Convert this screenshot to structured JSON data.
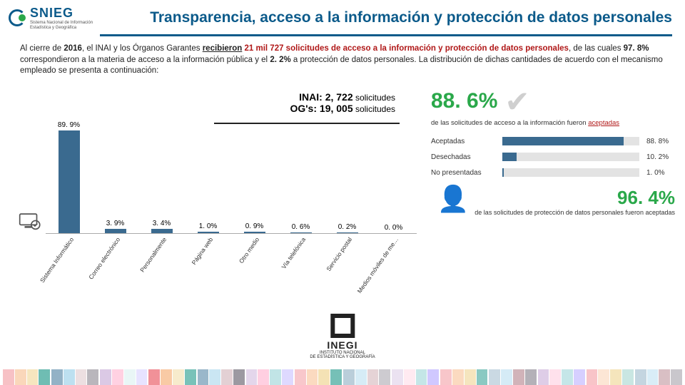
{
  "logo": {
    "text": "SNIEG",
    "sub1": "Sistema Nacional de Información",
    "sub2": "Estadística y Geográfica"
  },
  "title": "Transparencia, acceso a la información y protección de datos personales",
  "intro_parts": {
    "p1a": "Al cierre de ",
    "p1b": "2016",
    "p1c": ", el INAI y los Órganos Garantes ",
    "p1d": "recibieron",
    "p1e": " 21 mil 727 solicitudes de acceso a la información y protección de datos personales",
    "p1f": ", de las cuales ",
    "p1g": "97. 8%",
    "p1h": " correspondieron a la materia de acceso a la información pública y el ",
    "p1i": "2. 2%",
    "p1j": " a protección de datos personales. La distribución de dichas cantidades de acuerdo con el mecanismo empleado se presenta a continuación:"
  },
  "chart": {
    "title1_a": "INAI: ",
    "title1_b": "2, 722",
    "title1_c": " solicitudes",
    "title2_a": "OG's: ",
    "title2_b": "19, 005",
    "title2_c": " solicitudes",
    "max": 100,
    "bars": [
      {
        "label": "89. 9%",
        "value": 89.9,
        "cat": "Sistema Informático"
      },
      {
        "label": "3. 9%",
        "value": 3.9,
        "cat": "Correo electrónico"
      },
      {
        "label": "3. 4%",
        "value": 3.4,
        "cat": "Personalmente"
      },
      {
        "label": "1. 0%",
        "value": 1.0,
        "cat": "Página web"
      },
      {
        "label": "0. 9%",
        "value": 0.9,
        "cat": "Otro medio"
      },
      {
        "label": "0. 6%",
        "value": 0.6,
        "cat": "Vía telefónica"
      },
      {
        "label": "0. 2%",
        "value": 0.2,
        "cat": "Servicio postal"
      },
      {
        "label": "0. 0%",
        "value": 0.0,
        "cat": "Medios móviles de me…"
      }
    ],
    "bar_color": "#3a6a8f"
  },
  "side": {
    "big1": "88. 6%",
    "big1_sub_a": "de las solicitudes de acceso a la información fueron ",
    "big1_sub_b": "aceptadas",
    "rows": [
      {
        "label": "Aceptadas",
        "value": "88. 8%",
        "pct": 88.8
      },
      {
        "label": "Desechadas",
        "value": "10. 2%",
        "pct": 10.2
      },
      {
        "label": "No presentadas",
        "value": "1. 0%",
        "pct": 1.0
      }
    ],
    "big2": "96. 4%",
    "big2_sub_a": "de las solicitudes de protección de datos personales fueron ",
    "big2_sub_b": "aceptadas"
  },
  "inegi": {
    "name": "INEGI",
    "sub1": "INSTITUTO NACIONAL",
    "sub2": "DE ESTADÍSTICA Y GEOGRAFÍA"
  },
  "footer_colors": [
    "#e63946",
    "#f4a261",
    "#e9c46a",
    "#2a9d8f",
    "#457b9d",
    "#8ecae6",
    "#b5838d",
    "#6d6875",
    "#cdb4db",
    "#ffafcc",
    "#a8dadc",
    "#bdb2ff"
  ]
}
